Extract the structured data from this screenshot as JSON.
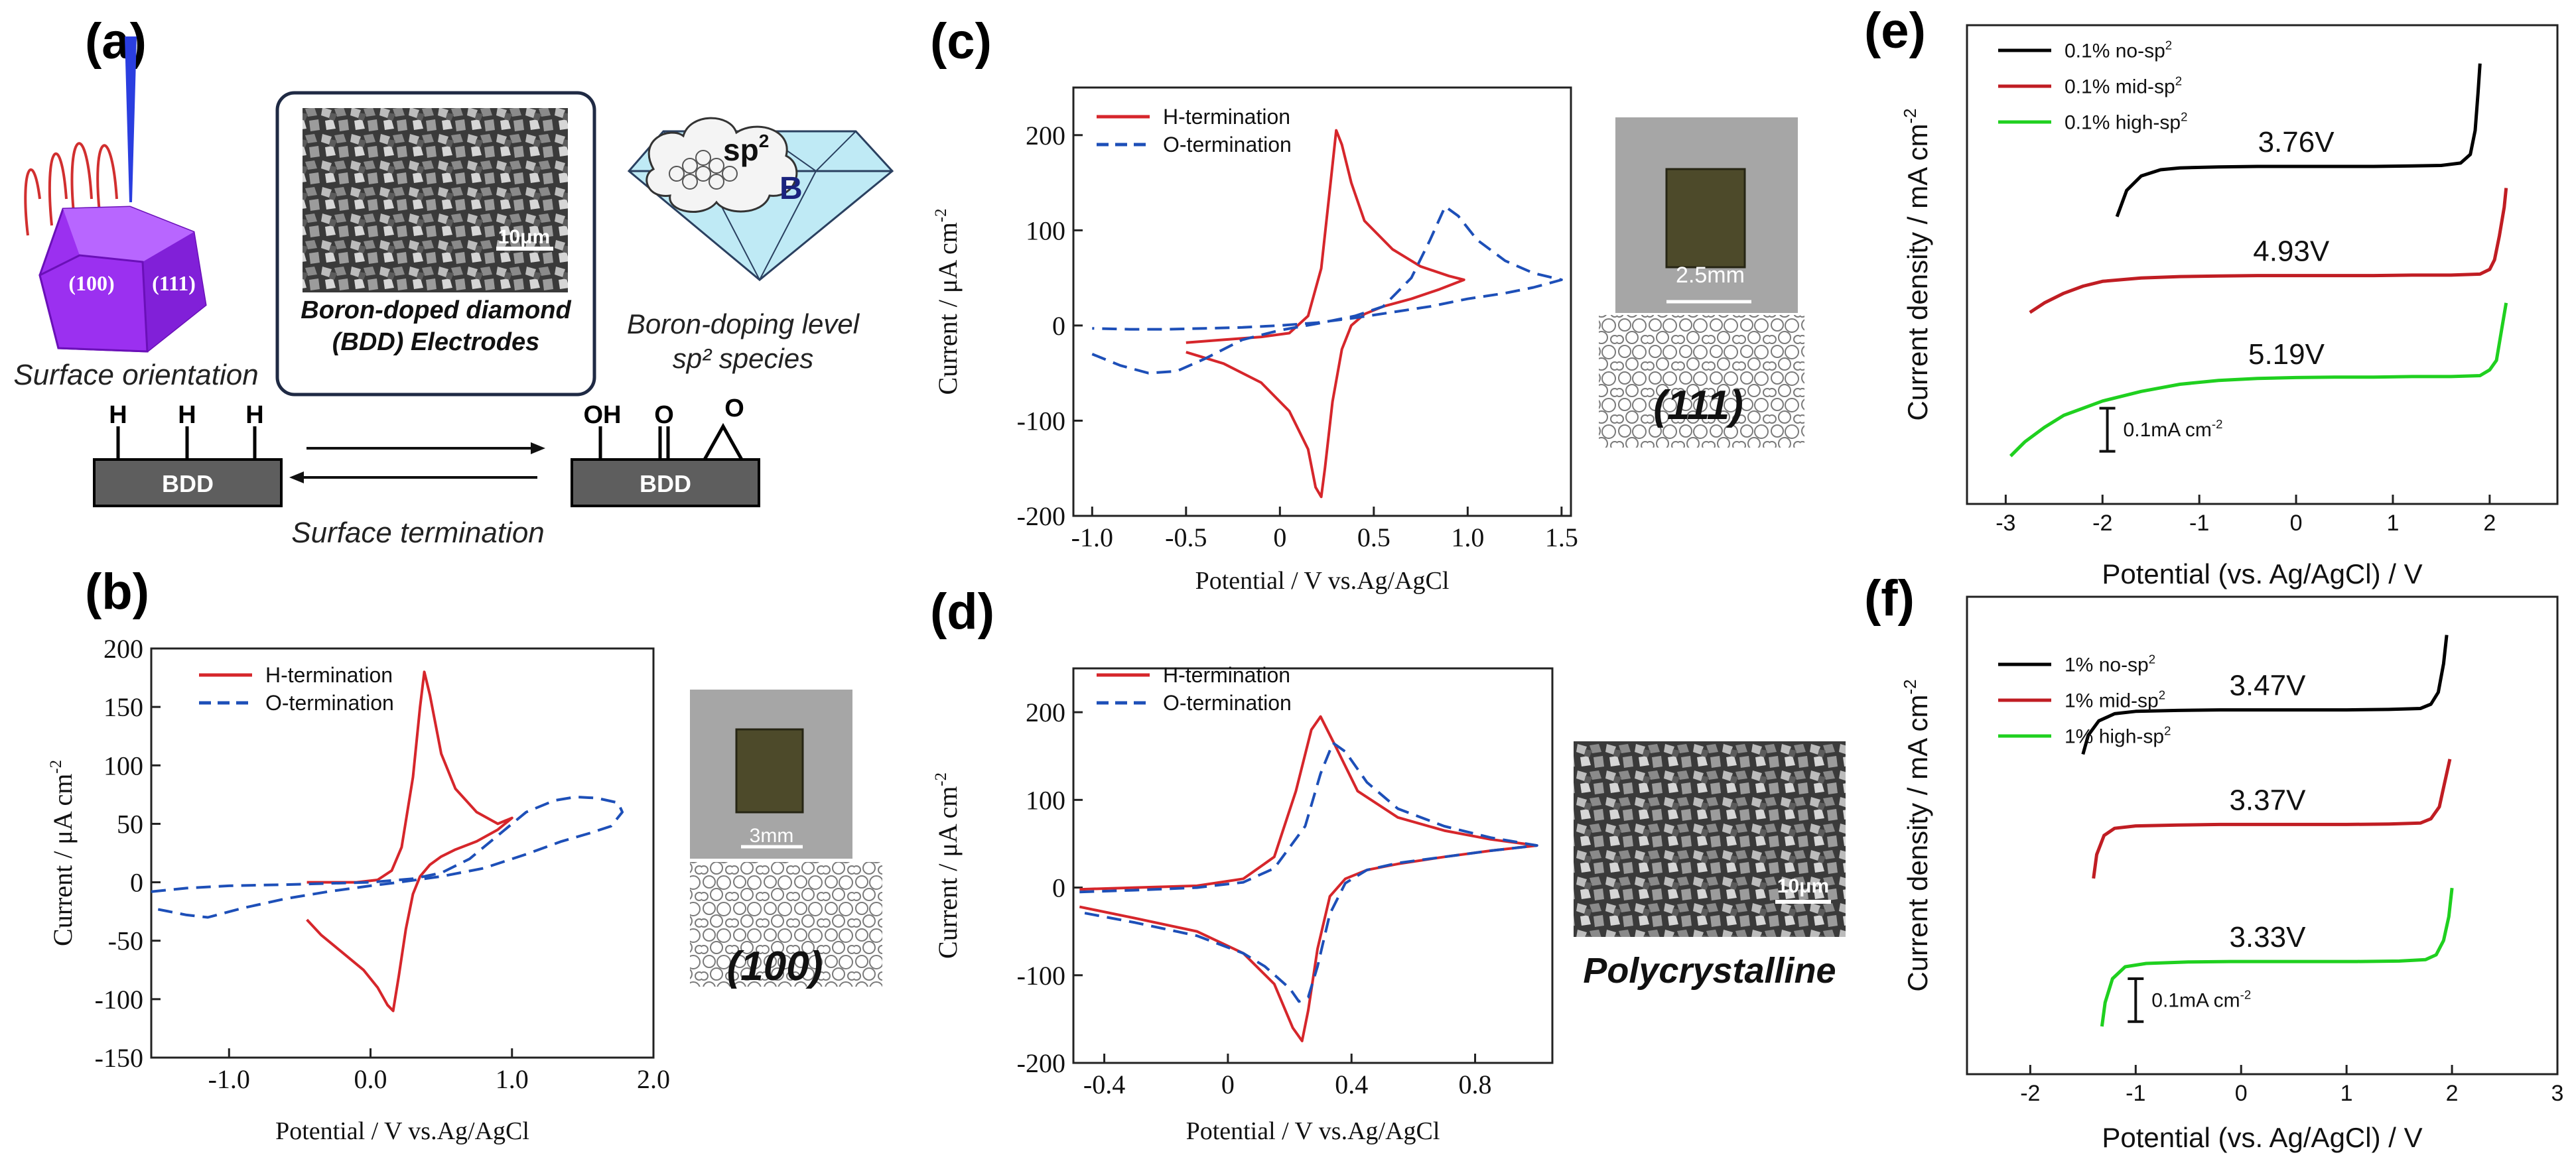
{
  "panel_labels": {
    "a": "(a)",
    "b": "(b)",
    "c": "(c)",
    "d": "(d)",
    "e": "(e)",
    "f": "(f)"
  },
  "schematic": {
    "surface_orientation": "Surface orientation",
    "facet_100": "(100)",
    "facet_111": "(111)",
    "bdd_title_line1": "Boron-doped diamond",
    "bdd_title_line2": "(BDD) Electrodes",
    "sem_scale": "10μm",
    "sp2_label": "sp",
    "sp2_sup": "2",
    "boron_label": "B",
    "doping_line1": "Boron-doping level",
    "doping_line2": "sp² species",
    "h_atom": "H",
    "oh_group": "OH",
    "o_atom": "O",
    "bdd_block": "BDD",
    "surface_termination": "Surface termination",
    "colors": {
      "crystal": "#9b30f0",
      "crystal_dark": "#7a16c9",
      "cloud_diamond": "#bfeaf5",
      "arrow": "#111111"
    }
  },
  "insets": {
    "b_scale": "3mm",
    "b_caption": "(100)",
    "c_scale": "2.5mm",
    "c_caption": "(111)",
    "d_scale": "10μm",
    "d_caption": "Polycrystalline"
  },
  "chart_data": [
    {
      "id": "b",
      "type": "line",
      "xlabel": "Potential / V vs.Ag/AgCl",
      "ylabel_main": "Current / μA cm",
      "ylabel_sup": "-2",
      "xlim": [
        -1.55,
        2.0
      ],
      "ylim": [
        -150,
        200
      ],
      "xticks": [
        -1.0,
        0.0,
        1.0,
        2.0
      ],
      "xtick_labels": [
        "-1.0",
        "0.0",
        "1.0",
        "2.0"
      ],
      "yticks": [
        -150,
        -100,
        -50,
        0,
        50,
        100,
        150,
        200
      ],
      "series": [
        {
          "name": "H-termination",
          "color": "#d6262b",
          "dash": false,
          "x": [
            -0.45,
            -0.3,
            -0.1,
            0.05,
            0.15,
            0.22,
            0.3,
            0.35,
            0.38,
            0.42,
            0.5,
            0.6,
            0.75,
            0.9,
            1.0,
            0.9,
            0.75,
            0.6,
            0.5,
            0.42,
            0.35,
            0.3,
            0.25,
            0.2,
            0.16,
            0.12,
            0.05,
            -0.05,
            -0.2,
            -0.35,
            -0.45
          ],
          "y": [
            0,
            0,
            0,
            2,
            10,
            30,
            90,
            150,
            180,
            160,
            110,
            80,
            60,
            50,
            55,
            45,
            35,
            28,
            22,
            15,
            5,
            -10,
            -40,
            -80,
            -110,
            -105,
            -90,
            -75,
            -60,
            -45,
            -32
          ]
        },
        {
          "name": "O-termination",
          "color": "#1d4fb8",
          "dash": true,
          "x": [
            -1.55,
            -1.3,
            -1.0,
            -0.6,
            -0.3,
            0.0,
            0.3,
            0.5,
            0.7,
            0.9,
            1.1,
            1.3,
            1.45,
            1.6,
            1.75,
            1.78,
            1.7,
            1.55,
            1.35,
            1.1,
            0.8,
            0.5,
            0.2,
            0.0,
            -0.3,
            -0.6,
            -0.9,
            -1.15,
            -1.3,
            -1.55
          ],
          "y": [
            -8,
            -5,
            -3,
            -2,
            -1,
            0,
            3,
            8,
            20,
            40,
            60,
            70,
            73,
            72,
            68,
            60,
            48,
            42,
            35,
            24,
            12,
            5,
            0,
            -3,
            -8,
            -14,
            -22,
            -30,
            -28,
            -22
          ]
        }
      ]
    },
    {
      "id": "c",
      "type": "line",
      "xlabel": "Potential / V vs.Ag/AgCl",
      "ylabel_main": "Current / μA cm",
      "ylabel_sup": "-2",
      "xlim": [
        -1.1,
        1.55
      ],
      "ylim": [
        -200,
        250
      ],
      "xticks": [
        -1.0,
        -0.5,
        0.0,
        0.5,
        1.0,
        1.5
      ],
      "xtick_labels": [
        "-1.0",
        "-0.5",
        "0",
        "0.5",
        "1.0",
        "1.5"
      ],
      "yticks": [
        -200,
        -100,
        0,
        100,
        200
      ],
      "series": [
        {
          "name": "H-termination",
          "color": "#d6262b",
          "dash": false,
          "x": [
            -0.5,
            -0.3,
            -0.1,
            0.05,
            0.15,
            0.22,
            0.27,
            0.3,
            0.33,
            0.38,
            0.45,
            0.6,
            0.75,
            0.9,
            0.98,
            0.85,
            0.7,
            0.55,
            0.45,
            0.38,
            0.33,
            0.28,
            0.24,
            0.22,
            0.19,
            0.15,
            0.05,
            -0.1,
            -0.3,
            -0.5
          ],
          "y": [
            -18,
            -15,
            -12,
            -8,
            10,
            60,
            150,
            205,
            190,
            150,
            110,
            80,
            62,
            52,
            48,
            38,
            28,
            20,
            12,
            0,
            -25,
            -80,
            -150,
            -180,
            -170,
            -130,
            -90,
            -60,
            -40,
            -28
          ]
        },
        {
          "name": "O-termination",
          "color": "#1d4fb8",
          "dash": true,
          "x": [
            -1.0,
            -0.85,
            -0.7,
            -0.55,
            -0.4,
            -0.2,
            0.0,
            0.2,
            0.4,
            0.55,
            0.7,
            0.8,
            0.88,
            0.95,
            1.05,
            1.2,
            1.35,
            1.5,
            1.35,
            1.2,
            1.0,
            0.8,
            0.6,
            0.4,
            0.2,
            0.0,
            -0.2,
            -0.4,
            -0.6,
            -0.8,
            -1.0
          ],
          "y": [
            -30,
            -42,
            -50,
            -48,
            -35,
            -15,
            -5,
            2,
            10,
            20,
            50,
            90,
            125,
            115,
            90,
            68,
            55,
            48,
            40,
            34,
            28,
            20,
            14,
            8,
            3,
            0,
            -2,
            -3,
            -4,
            -4,
            -3
          ]
        }
      ]
    },
    {
      "id": "d",
      "type": "line",
      "xlabel": "Potential / V vs.Ag/AgCl",
      "ylabel_main": "Current / μA cm",
      "ylabel_sup": "-2",
      "xlim": [
        -0.5,
        1.05
      ],
      "ylim": [
        -200,
        250
      ],
      "xticks": [
        -0.4,
        0.0,
        0.4,
        0.8
      ],
      "xtick_labels": [
        "-0.4",
        "0",
        "0.4",
        "0.8"
      ],
      "yticks": [
        -200,
        -100,
        0,
        100,
        200
      ],
      "series": [
        {
          "name": "H-termination",
          "color": "#d6262b",
          "dash": false,
          "x": [
            -0.48,
            -0.3,
            -0.1,
            0.05,
            0.15,
            0.22,
            0.27,
            0.3,
            0.35,
            0.42,
            0.55,
            0.7,
            0.85,
            1.0,
            0.85,
            0.7,
            0.55,
            0.45,
            0.38,
            0.33,
            0.29,
            0.26,
            0.24,
            0.21,
            0.15,
            0.05,
            -0.1,
            -0.3,
            -0.48
          ],
          "y": [
            -2,
            0,
            2,
            10,
            35,
            110,
            180,
            195,
            160,
            110,
            80,
            65,
            55,
            48,
            42,
            35,
            27,
            20,
            10,
            -10,
            -70,
            -140,
            -175,
            -160,
            -110,
            -75,
            -50,
            -35,
            -22
          ]
        },
        {
          "name": "O-termination",
          "color": "#1d4fb8",
          "dash": true,
          "x": [
            -0.48,
            -0.3,
            -0.1,
            0.05,
            0.15,
            0.25,
            0.3,
            0.34,
            0.38,
            0.45,
            0.55,
            0.7,
            0.85,
            1.0,
            0.85,
            0.7,
            0.55,
            0.45,
            0.38,
            0.33,
            0.29,
            0.26,
            0.23,
            0.2,
            0.12,
            0.05,
            -0.1,
            -0.3,
            -0.48
          ],
          "y": [
            -5,
            -3,
            0,
            6,
            22,
            70,
            130,
            165,
            155,
            120,
            90,
            70,
            57,
            48,
            42,
            35,
            28,
            20,
            5,
            -30,
            -90,
            -125,
            -130,
            -115,
            -90,
            -75,
            -55,
            -40,
            -28
          ]
        }
      ]
    },
    {
      "id": "e",
      "type": "line",
      "xlabel": "Potential (vs. Ag/AgCl) / V",
      "ylabel_main": "Current density / mA cm",
      "ylabel_sup": "-2",
      "xlim": [
        -3.4,
        2.7
      ],
      "ylim": [
        0,
        1
      ],
      "xticks": [
        -3,
        -2,
        -1,
        0,
        1,
        2
      ],
      "xtick_labels": [
        "-3",
        "-2",
        "-1",
        "0",
        "1",
        "2"
      ],
      "scale_bar": "0.1mA cm",
      "scale_sup": "-2",
      "window_labels": [
        "3.76V",
        "4.93V",
        "5.19V"
      ],
      "series": [
        {
          "name": "0.1% no-sp",
          "sup": "2",
          "color": "#000000",
          "x": [
            -1.85,
            -1.75,
            -1.6,
            -1.4,
            -1.2,
            -0.8,
            -0.4,
            0.0,
            0.4,
            0.8,
            1.2,
            1.5,
            1.7,
            1.8,
            1.85,
            1.88,
            1.9
          ],
          "y": [
            0.6,
            0.655,
            0.685,
            0.698,
            0.702,
            0.704,
            0.705,
            0.705,
            0.705,
            0.705,
            0.706,
            0.707,
            0.712,
            0.73,
            0.78,
            0.86,
            0.92
          ]
        },
        {
          "name": "0.1% mid-sp",
          "sup": "2",
          "color": "#c01d23",
          "x": [
            -2.75,
            -2.6,
            -2.4,
            -2.2,
            -2.0,
            -1.6,
            -1.2,
            -0.8,
            -0.4,
            0.0,
            0.4,
            0.8,
            1.2,
            1.6,
            1.9,
            2.0,
            2.05,
            2.1,
            2.15,
            2.17
          ],
          "y": [
            0.4,
            0.42,
            0.44,
            0.455,
            0.465,
            0.472,
            0.475,
            0.476,
            0.477,
            0.477,
            0.477,
            0.477,
            0.478,
            0.478,
            0.48,
            0.49,
            0.51,
            0.56,
            0.62,
            0.66
          ]
        },
        {
          "name": "0.1% high-sp",
          "sup": "2",
          "color": "#1fd01f",
          "x": [
            -2.95,
            -2.8,
            -2.6,
            -2.4,
            -2.2,
            -2.0,
            -1.6,
            -1.2,
            -0.8,
            -0.4,
            0.0,
            0.4,
            0.8,
            1.2,
            1.6,
            1.9,
            2.0,
            2.07,
            2.12,
            2.17
          ],
          "y": [
            0.1,
            0.13,
            0.16,
            0.185,
            0.2,
            0.215,
            0.235,
            0.25,
            0.258,
            0.262,
            0.264,
            0.265,
            0.265,
            0.266,
            0.266,
            0.268,
            0.28,
            0.3,
            0.36,
            0.42
          ]
        }
      ]
    },
    {
      "id": "f",
      "type": "line",
      "xlabel": "Potential (vs. Ag/AgCl) / V",
      "ylabel_main": "Current density / mA cm",
      "ylabel_sup": "-2",
      "xlim": [
        -2.6,
        3.0
      ],
      "ylim": [
        0,
        1
      ],
      "xticks": [
        -2,
        -1,
        0,
        1,
        2,
        3
      ],
      "xtick_labels": [
        "-2",
        "-1",
        "0",
        "1",
        "2",
        "3"
      ],
      "scale_bar": "0.1mA cm",
      "scale_sup": "-2",
      "window_labels": [
        "3.47V",
        "3.37V",
        "3.33V"
      ],
      "series": [
        {
          "name": "1% no-sp",
          "sup": "2",
          "color": "#000000",
          "x": [
            -1.5,
            -1.45,
            -1.35,
            -1.2,
            -1.0,
            -0.6,
            -0.2,
            0.2,
            0.6,
            1.0,
            1.4,
            1.7,
            1.8,
            1.87,
            1.92,
            1.95
          ],
          "y": [
            0.67,
            0.71,
            0.74,
            0.755,
            0.76,
            0.762,
            0.763,
            0.763,
            0.763,
            0.763,
            0.764,
            0.766,
            0.775,
            0.8,
            0.86,
            0.92
          ]
        },
        {
          "name": "1% mid-sp",
          "sup": "2",
          "color": "#c01d23",
          "x": [
            -1.4,
            -1.37,
            -1.3,
            -1.2,
            -1.0,
            -0.6,
            -0.2,
            0.2,
            0.6,
            1.0,
            1.4,
            1.7,
            1.8,
            1.88,
            1.93,
            1.98
          ],
          "y": [
            0.41,
            0.46,
            0.5,
            0.515,
            0.52,
            0.522,
            0.523,
            0.523,
            0.523,
            0.523,
            0.524,
            0.526,
            0.535,
            0.56,
            0.61,
            0.66
          ]
        },
        {
          "name": "1% high-sp",
          "sup": "2",
          "color": "#1fd01f",
          "x": [
            -1.32,
            -1.29,
            -1.22,
            -1.1,
            -0.9,
            -0.5,
            -0.1,
            0.3,
            0.7,
            1.1,
            1.5,
            1.75,
            1.85,
            1.92,
            1.97,
            2.0
          ],
          "y": [
            0.1,
            0.15,
            0.2,
            0.225,
            0.232,
            0.235,
            0.236,
            0.236,
            0.236,
            0.236,
            0.237,
            0.24,
            0.25,
            0.28,
            0.33,
            0.39
          ]
        }
      ]
    }
  ]
}
